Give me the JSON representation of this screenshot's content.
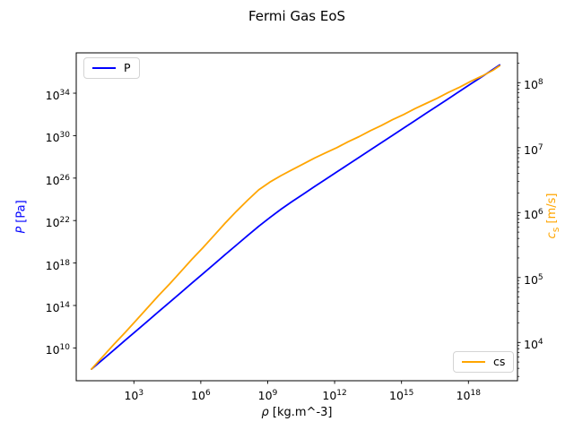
{
  "title": "Fermi Gas EoS",
  "legend": {
    "p_label": "P",
    "cs_label": "cs"
  },
  "chart_data": {
    "type": "line",
    "title": "Fermi Gas EoS",
    "grid": false,
    "x_axis": {
      "label_var": "ρ",
      "label_unit": " [kg.m^-3]",
      "scale": "log",
      "tick_exponents": [
        3,
        6,
        9,
        12,
        15,
        18
      ],
      "lim_log": [
        0.415,
        20.2
      ]
    },
    "left_axis": {
      "label_var": "P",
      "label_unit": " [Pa]",
      "color": "#0000ff",
      "scale": "log",
      "tick_exponents": [
        34,
        30,
        26,
        22,
        18,
        14,
        10
      ],
      "minor_ticks": false,
      "lim_log": [
        6.91,
        37.8
      ]
    },
    "right_axis": {
      "label_var": "c",
      "label_sub": "s",
      "label_unit": " [m/s]",
      "color": "#ffa500",
      "scale": "log",
      "tick_exponents": [
        8,
        7,
        6,
        5,
        4
      ],
      "minor_ticks": true,
      "lim_log": [
        3.411,
        8.459
      ]
    },
    "series": [
      {
        "name": "P",
        "axis": "left",
        "color": "#0000ff",
        "legend_pos": "upper left",
        "log_x": [
          1.1,
          1.6,
          2.1,
          2.6,
          3.1,
          3.6,
          4.1,
          4.6,
          5.1,
          5.6,
          6.1,
          6.6,
          7.1,
          7.6,
          8.1,
          8.6,
          9.1,
          9.6,
          10.1,
          10.6,
          11.1,
          11.6,
          12.1,
          12.6,
          13.1,
          13.6,
          14.1,
          14.6,
          15.1,
          15.6,
          16.1,
          16.6,
          17.1,
          17.6,
          18.1,
          18.6,
          19.1,
          19.4
        ],
        "log_y": [
          8.0,
          8.9,
          9.8,
          10.7,
          11.6,
          12.5,
          13.4,
          14.3,
          15.2,
          16.1,
          17.0,
          17.9,
          18.8,
          19.7,
          20.59,
          21.46,
          22.29,
          23.07,
          23.8,
          24.5,
          25.2,
          25.89,
          26.58,
          27.27,
          27.96,
          28.65,
          29.34,
          30.03,
          30.72,
          31.41,
          32.1,
          32.79,
          33.48,
          34.17,
          34.86,
          35.55,
          36.24,
          36.66
        ]
      },
      {
        "name": "cs",
        "axis": "right",
        "color": "#ffa500",
        "legend_pos": "lower right",
        "log_x": [
          1.1,
          1.6,
          2.1,
          2.6,
          3.1,
          3.6,
          4.1,
          4.6,
          5.1,
          5.6,
          6.1,
          6.6,
          7.1,
          7.6,
          8.1,
          8.6,
          9.1,
          9.6,
          10.1,
          10.6,
          11.1,
          11.6,
          12.1,
          12.6,
          13.1,
          13.6,
          14.1,
          14.6,
          15.1,
          15.6,
          16.1,
          16.6,
          17.1,
          17.6,
          18.1,
          18.6,
          19.1,
          19.4
        ],
        "log_y": [
          3.59,
          3.78,
          3.97,
          4.15,
          4.34,
          4.53,
          4.72,
          4.9,
          5.09,
          5.28,
          5.46,
          5.65,
          5.84,
          6.02,
          6.19,
          6.35,
          6.47,
          6.57,
          6.66,
          6.75,
          6.84,
          6.92,
          7.0,
          7.09,
          7.17,
          7.26,
          7.34,
          7.43,
          7.51,
          7.6,
          7.68,
          7.76,
          7.85,
          7.93,
          8.02,
          8.1,
          8.19,
          8.26
        ]
      }
    ]
  }
}
